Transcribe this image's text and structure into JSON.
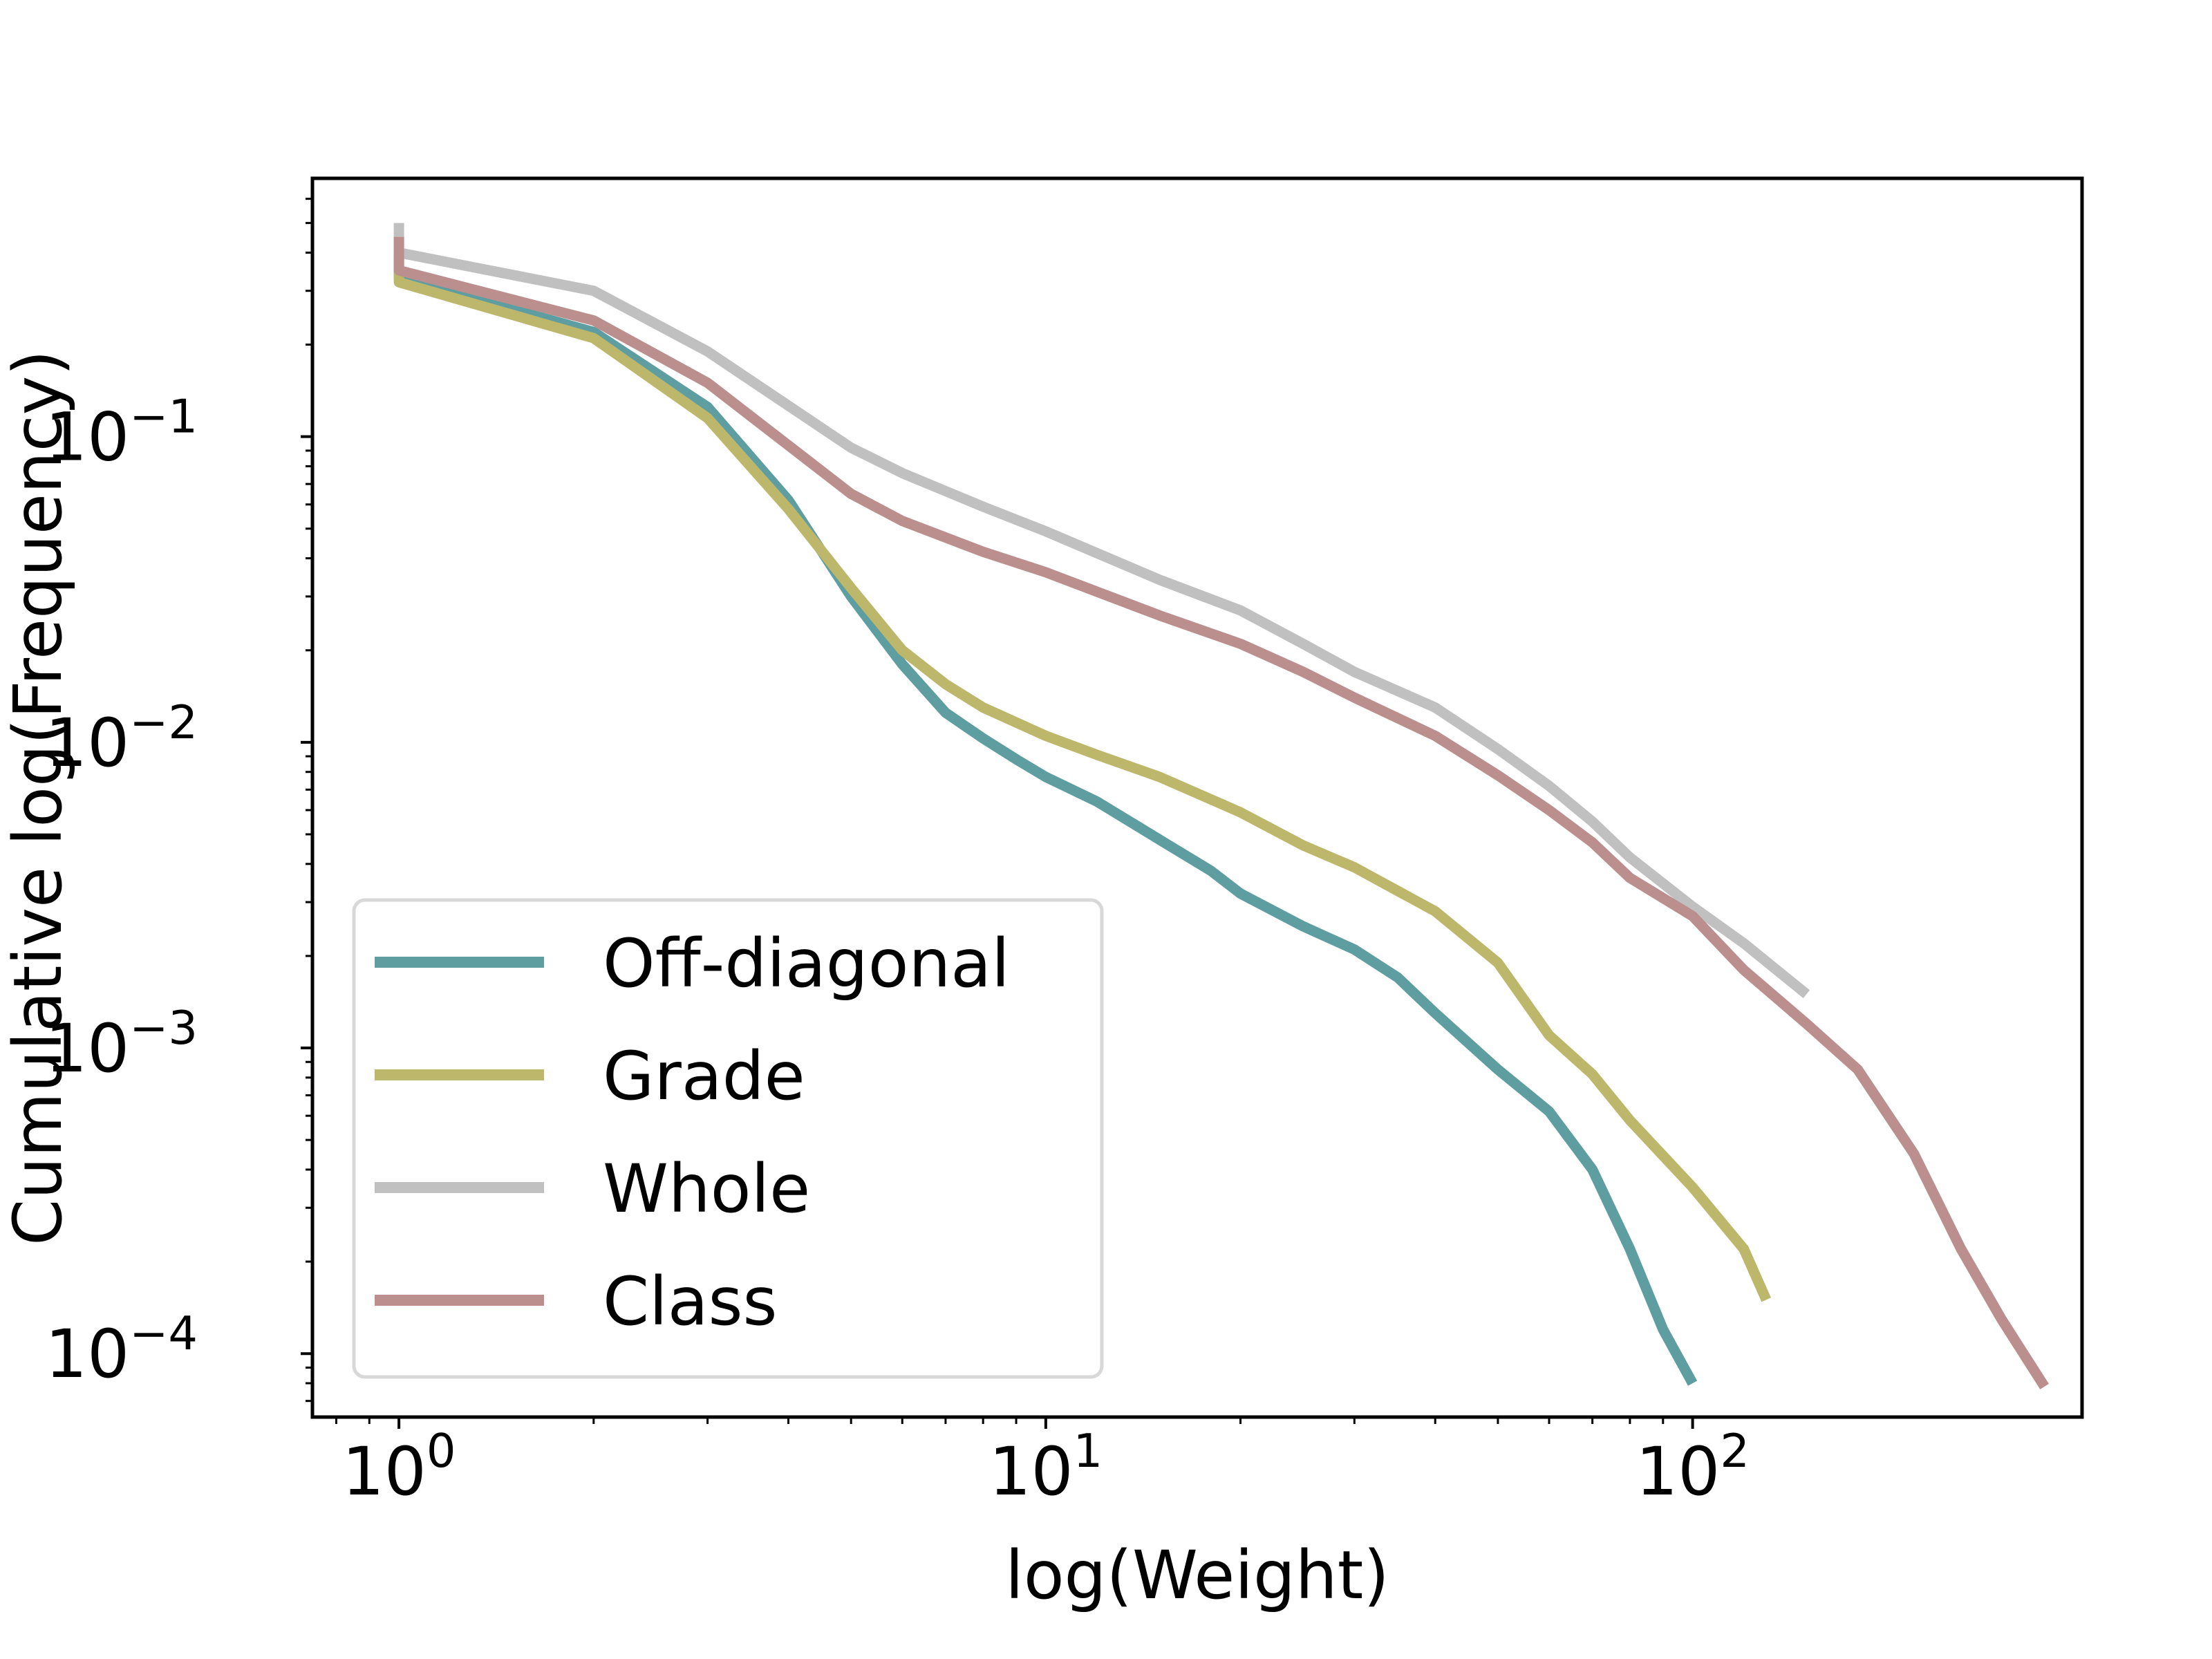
{
  "chart_data": {
    "type": "line",
    "title": "",
    "xlabel": "log(Weight)",
    "ylabel": "Cumulative log(Frequency)",
    "xscale": "log",
    "yscale": "log",
    "xlim": [
      0.735,
      400
    ],
    "ylim": [
      6.2e-05,
      0.7
    ],
    "grid": false,
    "legend_position": "lower-left",
    "x_ticks": [
      {
        "base": "10",
        "exp": "0",
        "value": 1
      },
      {
        "base": "10",
        "exp": "1",
        "value": 10
      },
      {
        "base": "10",
        "exp": "2",
        "value": 100
      }
    ],
    "y_ticks": [
      {
        "base": "10",
        "exp": "−1",
        "value": 0.1
      },
      {
        "base": "10",
        "exp": "−2",
        "value": 0.01
      },
      {
        "base": "10",
        "exp": "−3",
        "value": 0.001
      },
      {
        "base": "10",
        "exp": "−4",
        "value": 0.0001
      }
    ],
    "series": [
      {
        "name": "Off-diagonal",
        "color": "#5f9ea0",
        "x": [
          1,
          1,
          2,
          3,
          4,
          5,
          6,
          7,
          8,
          9,
          10,
          12,
          15,
          18,
          20,
          25,
          30,
          35,
          40,
          50,
          60,
          70,
          80,
          90,
          100
        ],
        "y": [
          0.4,
          0.33,
          0.22,
          0.125,
          0.062,
          0.03,
          0.018,
          0.0125,
          0.0103,
          0.0088,
          0.0077,
          0.0064,
          0.0048,
          0.0038,
          0.0032,
          0.0025,
          0.0021,
          0.0017,
          0.0013,
          0.00085,
          0.00062,
          0.0004,
          0.00022,
          0.00012,
          8e-05
        ]
      },
      {
        "name": "Grade",
        "color": "#bdb76b",
        "x": [
          1,
          1,
          2,
          3,
          4,
          5,
          6,
          7,
          8,
          10,
          12,
          15,
          20,
          25,
          30,
          40,
          50,
          60,
          70,
          80,
          100,
          120,
          130
        ],
        "y": [
          0.4,
          0.32,
          0.21,
          0.115,
          0.058,
          0.032,
          0.02,
          0.0155,
          0.013,
          0.0105,
          0.0091,
          0.0077,
          0.0059,
          0.0046,
          0.0039,
          0.0028,
          0.0019,
          0.0011,
          0.00082,
          0.00058,
          0.00035,
          0.00022,
          0.00015
        ]
      },
      {
        "name": "Whole",
        "color": "#c0c0c0",
        "x": [
          1,
          1,
          2,
          3,
          5,
          6,
          8,
          10,
          15,
          20,
          25,
          30,
          40,
          50,
          60,
          70,
          80,
          100,
          120,
          150
        ],
        "y": [
          0.5,
          0.4,
          0.3,
          0.19,
          0.092,
          0.076,
          0.059,
          0.049,
          0.034,
          0.027,
          0.021,
          0.017,
          0.013,
          0.0095,
          0.0072,
          0.0055,
          0.0042,
          0.0029,
          0.0022,
          0.0015
        ]
      },
      {
        "name": "Class",
        "color": "#bc8f8f",
        "x": [
          1,
          1,
          2,
          3,
          5,
          6,
          8,
          10,
          15,
          20,
          25,
          30,
          40,
          50,
          60,
          70,
          80,
          100,
          120,
          150,
          180,
          220,
          260,
          300,
          350
        ],
        "y": [
          0.45,
          0.35,
          0.24,
          0.15,
          0.065,
          0.053,
          0.042,
          0.036,
          0.026,
          0.021,
          0.017,
          0.014,
          0.0105,
          0.0078,
          0.006,
          0.0047,
          0.0036,
          0.0027,
          0.0018,
          0.0012,
          0.00085,
          0.00045,
          0.00022,
          0.00013,
          7.8e-05
        ]
      }
    ]
  }
}
